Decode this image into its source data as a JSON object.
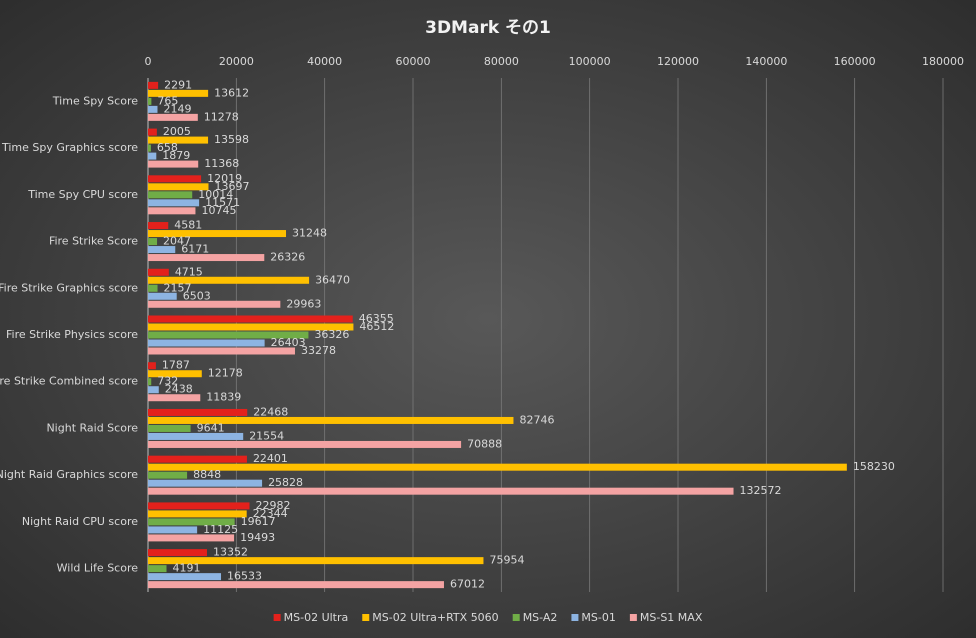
{
  "chart_data": {
    "type": "hbar",
    "title": "3DMark その1",
    "categories": [
      "Time Spy Score",
      "Time Spy Graphics score",
      "Time Spy CPU score",
      "Fire Strike Score",
      "Fire Strike Graphics score",
      "Fire Strike Physics score",
      "Fire Strike Combined score",
      "Night Raid Score",
      "Night Raid Graphics score",
      "Night Raid CPU score",
      "Wild Life Score"
    ],
    "series": [
      {
        "name": "MS-02 Ultra",
        "color": "#e3211c",
        "values": [
          2291,
          2005,
          12019,
          4581,
          4715,
          46355,
          1787,
          22468,
          22401,
          22982,
          13352
        ]
      },
      {
        "name": "MS-02 Ultra+RTX 5060",
        "color": "#ffc000",
        "values": [
          13612,
          13598,
          13697,
          31248,
          36470,
          46512,
          12178,
          82746,
          158230,
          22344,
          75954
        ]
      },
      {
        "name": "MS-A2",
        "color": "#70ad47",
        "values": [
          765,
          658,
          10014,
          2047,
          2157,
          36326,
          732,
          9641,
          8848,
          19617,
          4191
        ]
      },
      {
        "name": "MS-01",
        "color": "#8db4e2",
        "values": [
          2149,
          1879,
          11571,
          6171,
          6503,
          26403,
          2438,
          21554,
          25828,
          11125,
          16533
        ]
      },
      {
        "name": "MS-S1 MAX",
        "color": "#f4a3a3",
        "values": [
          11278,
          11368,
          10745,
          26326,
          29963,
          33278,
          11839,
          70888,
          132572,
          19493,
          67012
        ]
      }
    ],
    "xlim": [
      0,
      180000
    ],
    "xticks": [
      0,
      20000,
      40000,
      60000,
      80000,
      100000,
      120000,
      140000,
      160000,
      180000
    ],
    "grid": true,
    "legend": "bottom"
  }
}
